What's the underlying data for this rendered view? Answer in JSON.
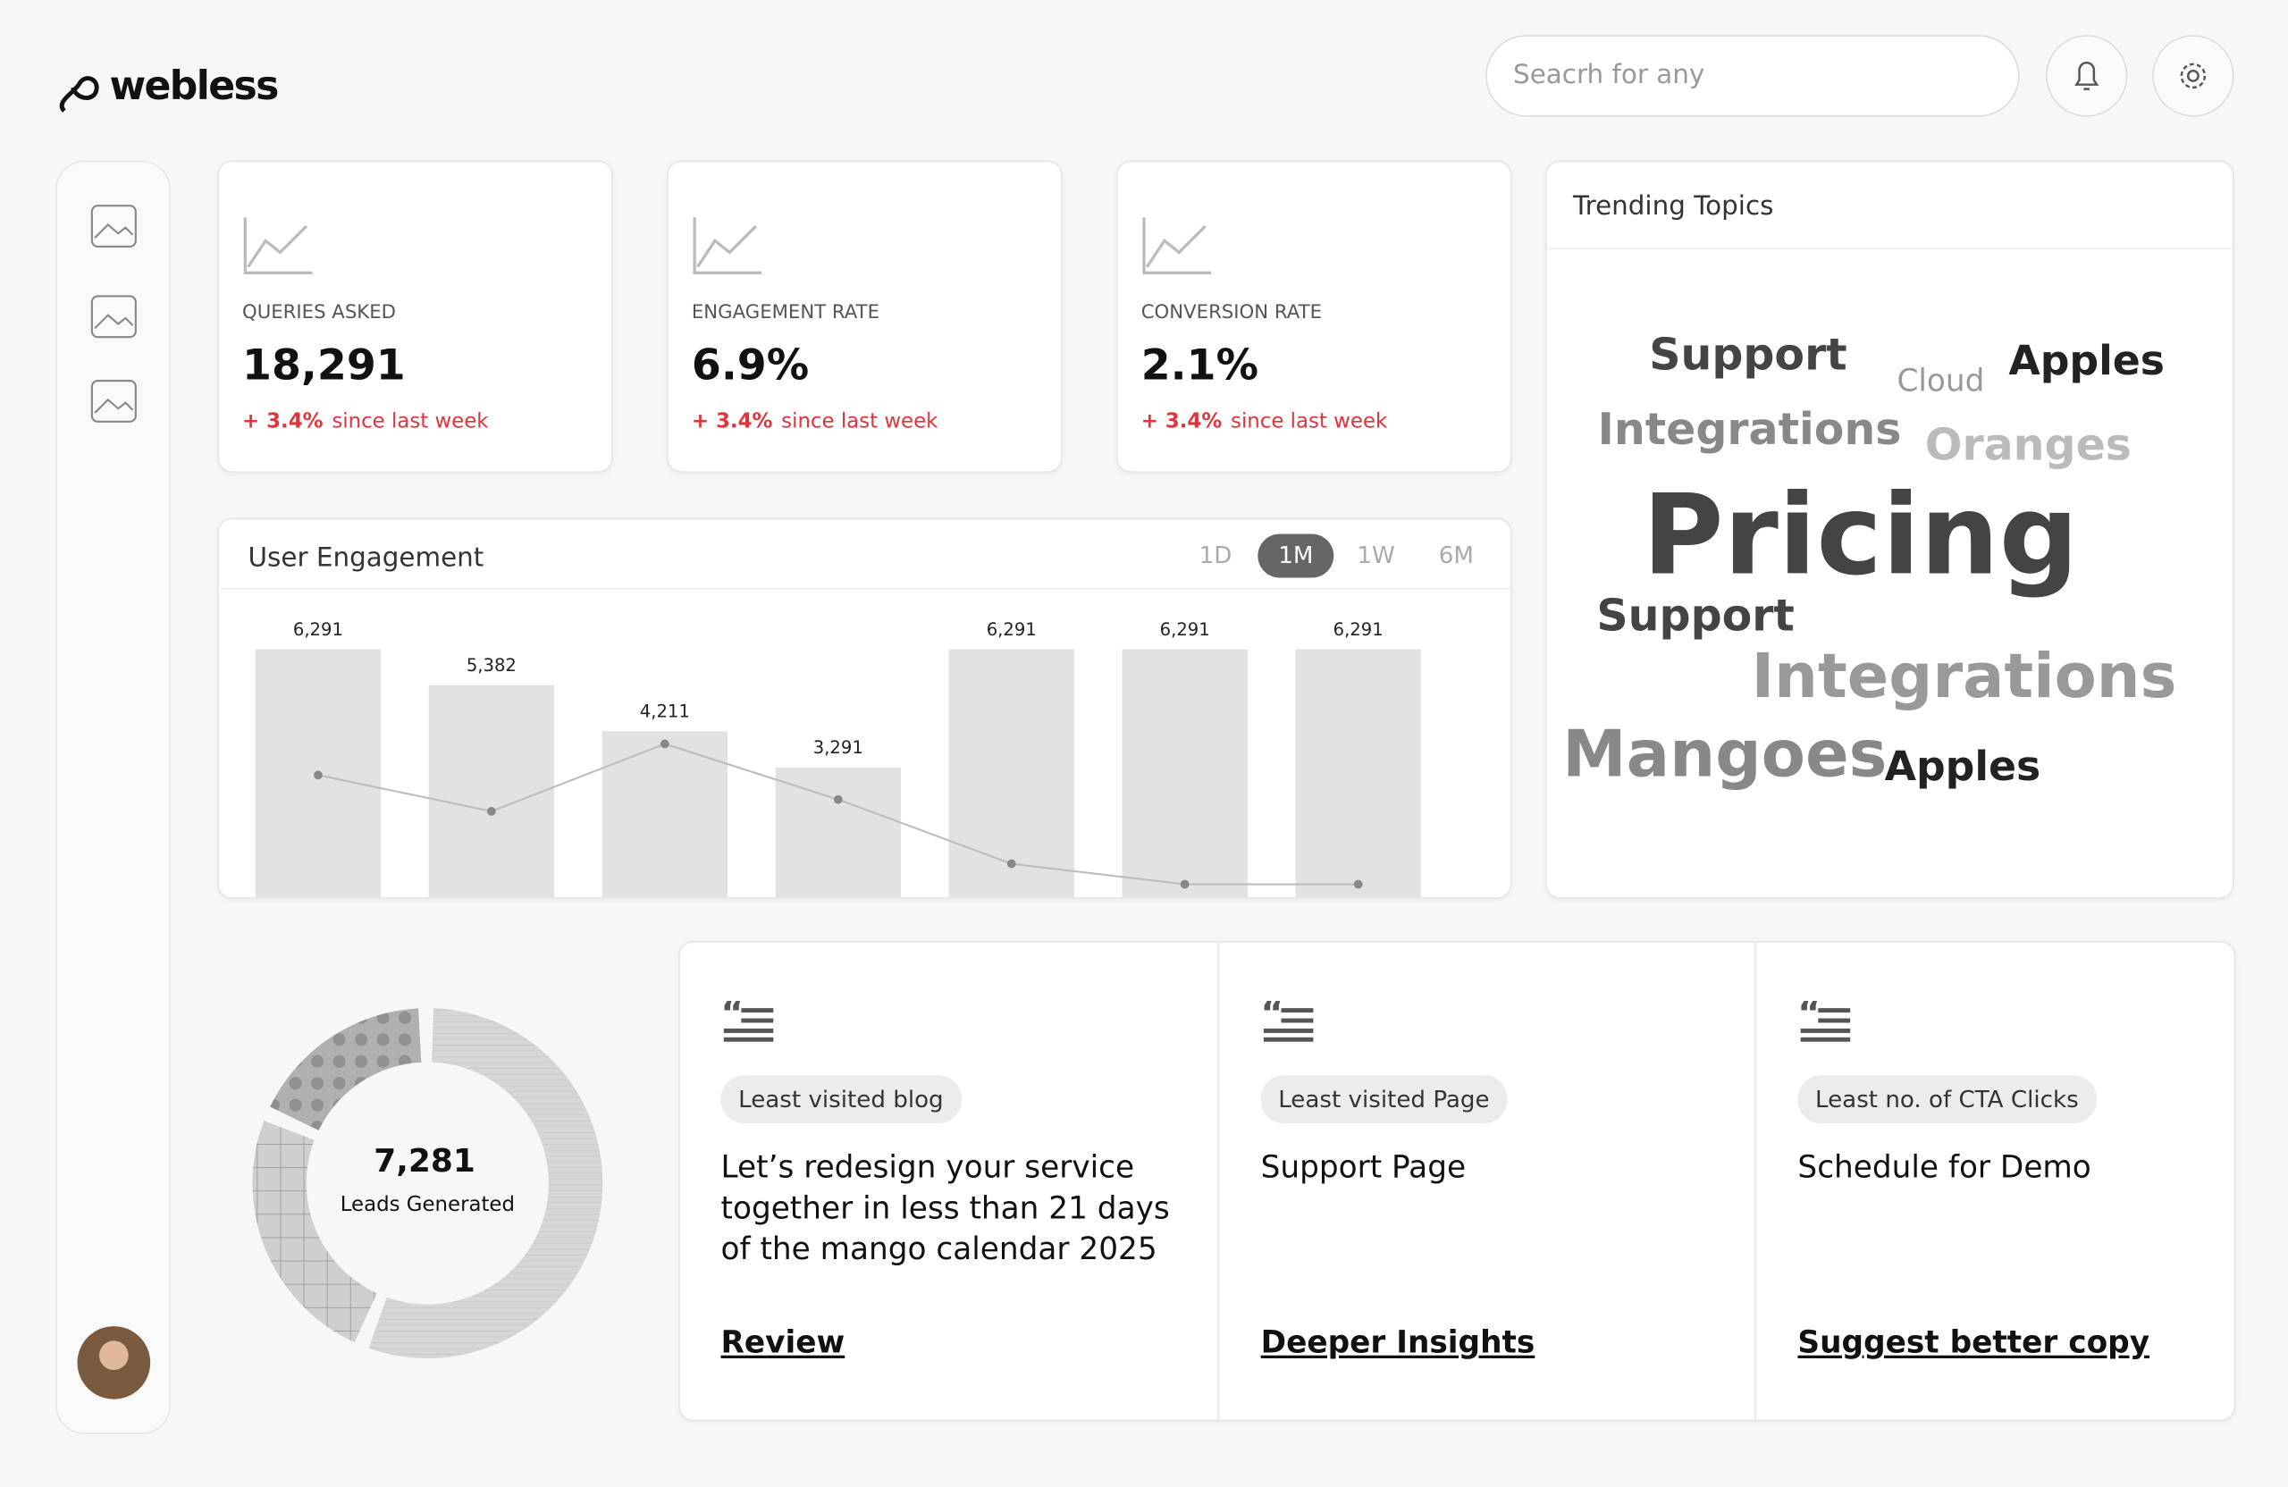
{
  "header": {
    "logo": "webless",
    "search_placeholder": "Seacrh for any"
  },
  "stats": [
    {
      "label": "QUERIES ASKED",
      "value": "18,291",
      "change": "+ 3.4%",
      "change_note": "since last week"
    },
    {
      "label": "ENGAGEMENT RATE",
      "value": "6.9%",
      "change": "+ 3.4%",
      "change_note": "since last week"
    },
    {
      "label": "CONVERSION RATE",
      "value": "2.1%",
      "change": "+ 3.4%",
      "change_note": "since last week"
    }
  ],
  "engagement": {
    "title": "User Engagement",
    "ranges": [
      "1D",
      "1M",
      "1W",
      "6M"
    ],
    "active_range": "1M",
    "values": [
      6291,
      5382,
      4211,
      3291,
      6291,
      6291,
      6291
    ],
    "value_labels": [
      "6,291",
      "5,382",
      "4,211",
      "3,291",
      "6,291",
      "6,291",
      "6,291"
    ],
    "trend": [
      3100,
      2180,
      3890,
      2480,
      850,
      330,
      330
    ]
  },
  "trending": {
    "title": "Trending Topics",
    "words": [
      "Support",
      "Cloud",
      "Apples",
      "Integrations",
      "Oranges",
      "Pricing",
      "Support",
      "Integrations",
      "Mangoes",
      "Apples"
    ]
  },
  "leads": {
    "value": "7,281",
    "label": "Leads Generated",
    "segments": [
      55,
      24,
      17
    ]
  },
  "insights": [
    {
      "tag": "Least visited blog",
      "text": "Let’s redesign your service together in less than 21 days of the mango calendar 2025",
      "link": "Review"
    },
    {
      "tag": "Least visited Page",
      "text": "Support Page",
      "link": "Deeper Insights"
    },
    {
      "tag": "Least no. of CTA Clicks",
      "text": "Schedule for Demo",
      "link": "Suggest better copy"
    }
  ]
}
